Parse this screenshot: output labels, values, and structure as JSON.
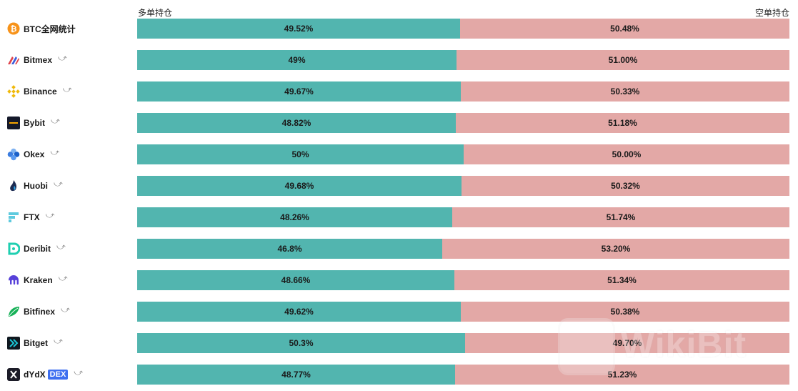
{
  "header": {
    "long_label": "多单持仓",
    "short_label": "空单持仓"
  },
  "watermark": {
    "text": "WikiBit"
  },
  "colors": {
    "long": "#52b5af",
    "short": "#e3a8a6"
  },
  "chart_data": {
    "type": "bar",
    "orientation": "horizontal-stacked-percent",
    "categories": [
      "BTC全网统计",
      "Bitmex",
      "Binance",
      "Bybit",
      "Okex",
      "Huobi",
      "FTX",
      "Deribit",
      "Kraken",
      "Bitfinex",
      "Bitget",
      "dYdX"
    ],
    "series": [
      {
        "name": "多单持仓",
        "values": [
          49.52,
          49,
          49.67,
          48.82,
          50,
          49.68,
          48.26,
          46.8,
          48.66,
          49.62,
          50.3,
          48.77
        ],
        "labels": [
          "49.52%",
          "49%",
          "49.67%",
          "48.82%",
          "50%",
          "49.68%",
          "48.26%",
          "46.8%",
          "48.66%",
          "49.62%",
          "50.3%",
          "48.77%"
        ]
      },
      {
        "name": "空单持仓",
        "values": [
          50.48,
          51.0,
          50.33,
          51.18,
          50.0,
          50.32,
          51.74,
          53.2,
          51.34,
          50.38,
          49.7,
          51.23
        ],
        "labels": [
          "50.48%",
          "51.00%",
          "50.33%",
          "51.18%",
          "50.00%",
          "50.32%",
          "51.74%",
          "53.20%",
          "51.34%",
          "50.38%",
          "49.70%",
          "51.23%"
        ]
      }
    ],
    "xlim": [
      0,
      100
    ]
  },
  "rows": [
    {
      "name": "BTC全网统计",
      "icon": "bitcoin-icon",
      "share": false,
      "badge": ""
    },
    {
      "name": "Bitmex",
      "icon": "bitmex-icon",
      "share": true,
      "badge": ""
    },
    {
      "name": "Binance",
      "icon": "binance-icon",
      "share": true,
      "badge": ""
    },
    {
      "name": "Bybit",
      "icon": "bybit-icon",
      "share": true,
      "badge": ""
    },
    {
      "name": "Okex",
      "icon": "okex-icon",
      "share": true,
      "badge": ""
    },
    {
      "name": "Huobi",
      "icon": "huobi-icon",
      "share": true,
      "badge": ""
    },
    {
      "name": "FTX",
      "icon": "ftx-icon",
      "share": true,
      "badge": ""
    },
    {
      "name": "Deribit",
      "icon": "deribit-icon",
      "share": true,
      "badge": ""
    },
    {
      "name": "Kraken",
      "icon": "kraken-icon",
      "share": true,
      "badge": ""
    },
    {
      "name": "Bitfinex",
      "icon": "bitfinex-icon",
      "share": true,
      "badge": ""
    },
    {
      "name": "Bitget",
      "icon": "bitget-icon",
      "share": true,
      "badge": ""
    },
    {
      "name": "dYdX",
      "icon": "dydx-icon",
      "share": true,
      "badge": "DEX"
    }
  ]
}
